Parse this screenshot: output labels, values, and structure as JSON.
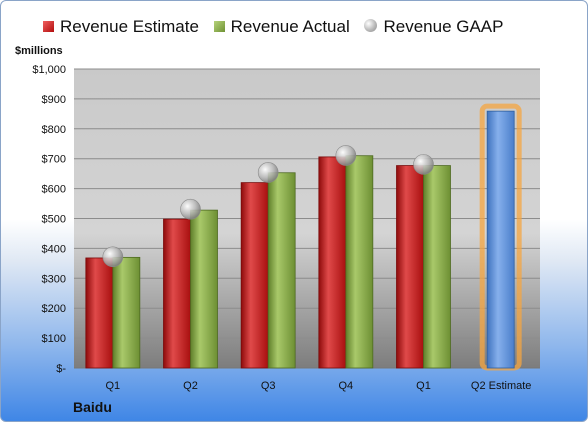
{
  "company": "Baidu",
  "chart_data": {
    "type": "bar",
    "ylabel": "$millions",
    "ylim": [
      0,
      1000
    ],
    "yticks": [
      "$-",
      "$100",
      "$200",
      "$300",
      "$400",
      "$500",
      "$600",
      "$700",
      "$800",
      "$900",
      "$1,000"
    ],
    "categories": [
      "Q1",
      "Q2",
      "Q3",
      "Q4",
      "Q1",
      "Q2 Estimate"
    ],
    "series": [
      {
        "name": "Revenue Estimate",
        "color": "#c21a1a",
        "values": [
          368,
          498,
          620,
          706,
          677,
          null
        ]
      },
      {
        "name": "Revenue Actual",
        "color": "#8eb148",
        "values": [
          370,
          528,
          653,
          710,
          677,
          null
        ]
      },
      {
        "name": "Revenue GAAP",
        "color": "#a6a6a6",
        "values": [
          372,
          531,
          654,
          711,
          681,
          null
        ]
      }
    ],
    "forecast": {
      "category": "Q2 Estimate",
      "value": 859,
      "color": "#5a8fd6",
      "glow": "#f5a640"
    },
    "legend_position": "top",
    "grid": true
  }
}
